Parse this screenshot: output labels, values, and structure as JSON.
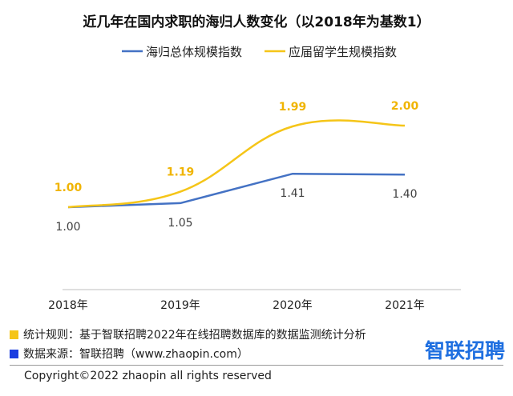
{
  "chart_data": {
    "type": "line",
    "title": "近几年在国内求职的海归人数变化（以2018年为基数1）",
    "categories": [
      "2018年",
      "2019年",
      "2020年",
      "2021年"
    ],
    "series": [
      {
        "name": "海归总体规模指数",
        "values": [
          1.0,
          1.05,
          1.41,
          1.4
        ],
        "labels": [
          "1.00",
          "1.05",
          "1.41",
          "1.40"
        ],
        "color": "#4472c4"
      },
      {
        "name": "应届留学生规模指数",
        "values": [
          1.0,
          1.19,
          1.99,
          2.0
        ],
        "labels": [
          "1.00",
          "1.19",
          "1.99",
          "2.00"
        ],
        "color": "#f5c518"
      }
    ],
    "legend_position": "top",
    "grid": false,
    "label_color_blue": "#404040",
    "label_color_yellow": "#f0b400"
  },
  "footer": {
    "note1": "统计规则：基于智联招聘2022年在线招聘数据库的数据监测统计分析",
    "note1_color": "#f5c518",
    "note2": "数据来源：智联招聘（www.zhaopin.com）",
    "note2_color": "#1a3de0",
    "brand": "智联招聘",
    "copyright": "Copyright©2022 zhaopin all rights reserved"
  }
}
